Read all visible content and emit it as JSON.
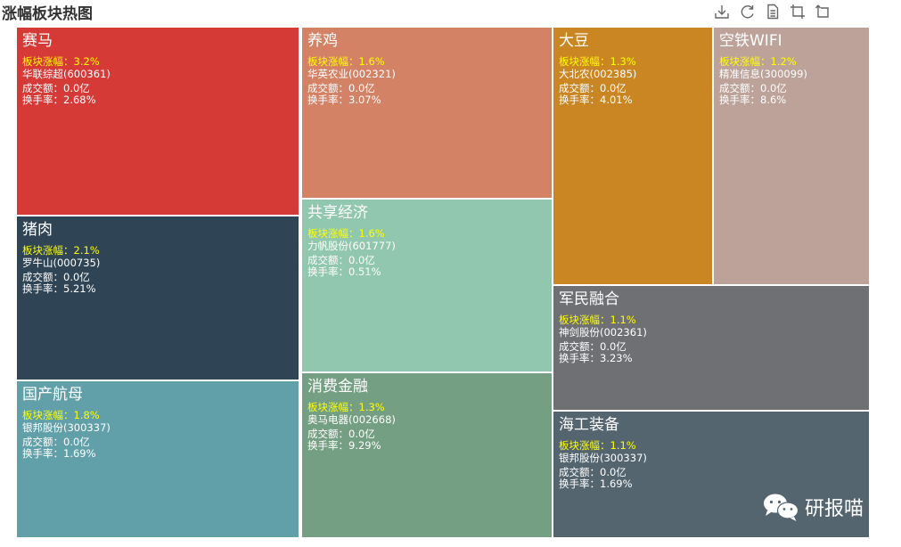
{
  "title": "涨幅板块热图",
  "toolbar": [
    {
      "name": "download-icon"
    },
    {
      "name": "refresh-icon"
    },
    {
      "name": "data-view-icon"
    },
    {
      "name": "zoom-icon"
    },
    {
      "name": "restore-icon"
    }
  ],
  "labels": {
    "change": "板块涨幅：",
    "volume": "成交额：",
    "turnover": "换手率："
  },
  "chart_data": {
    "type": "treemap",
    "title": "涨幅板块热图",
    "items": [
      {
        "name": "赛马",
        "change": "3.2%",
        "stock": "华联综超(600361)",
        "volume": "0.0亿",
        "turnover": "2.68%",
        "color": "#d63a36"
      },
      {
        "name": "猪肉",
        "change": "2.1%",
        "stock": "罗牛山(000735)",
        "volume": "0.0亿",
        "turnover": "5.21%",
        "color": "#2f4454"
      },
      {
        "name": "国产航母",
        "change": "1.8%",
        "stock": "银邦股份(300337)",
        "volume": "0.0亿",
        "turnover": "1.69%",
        "color": "#61a0a8"
      },
      {
        "name": "养鸡",
        "change": "1.6%",
        "stock": "华英农业(002321)",
        "volume": "0.0亿",
        "turnover": "3.07%",
        "color": "#d48265"
      },
      {
        "name": "共享经济",
        "change": "1.6%",
        "stock": "力帆股份(601777)",
        "volume": "0.0亿",
        "turnover": "0.51%",
        "color": "#91c7ae"
      },
      {
        "name": "消费金融",
        "change": "1.3%",
        "stock": "奥马电器(002668)",
        "volume": "0.0亿",
        "turnover": "9.29%",
        "color": "#749f83"
      },
      {
        "name": "大豆",
        "change": "1.3%",
        "stock": "大北农(002385)",
        "volume": "0.0亿",
        "turnover": "4.01%",
        "color": "#ca8622"
      },
      {
        "name": "空铁WIFI",
        "change": "1.2%",
        "stock": "精准信息(300099)",
        "volume": "0.0亿",
        "turnover": "8.6%",
        "color": "#bda29a"
      },
      {
        "name": "军民融合",
        "change": "1.1%",
        "stock": "神剑股份(002361)",
        "volume": "0.0亿",
        "turnover": "3.23%",
        "color": "#6e7074"
      },
      {
        "name": "海工装备",
        "change": "1.1%",
        "stock": "银邦股份(300337)",
        "volume": "0.0亿",
        "turnover": "1.69%",
        "color": "#546570"
      }
    ]
  },
  "watermark": {
    "text": "研报喵",
    "icon": "wechat-icon"
  }
}
